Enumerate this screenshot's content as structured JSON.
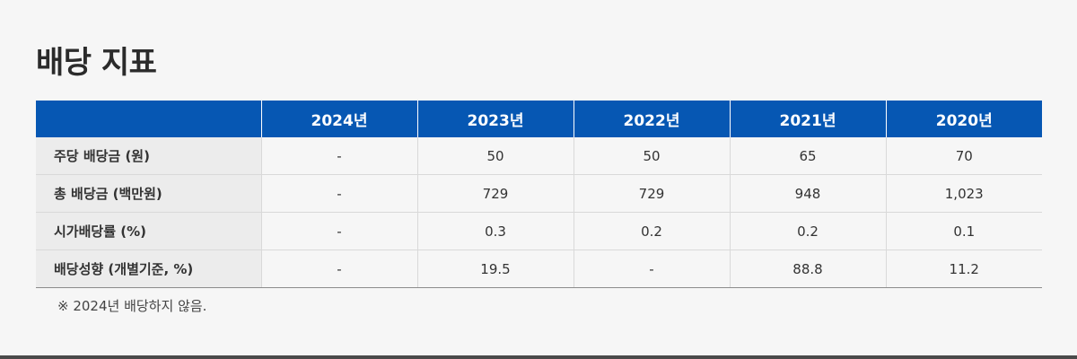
{
  "title": "배당 지표",
  "table": {
    "headers": [
      "",
      "2024년",
      "2023년",
      "2022년",
      "2021년",
      "2020년"
    ],
    "rows": [
      {
        "label": "주당 배당금 (원)",
        "values": [
          "-",
          "50",
          "50",
          "65",
          "70"
        ]
      },
      {
        "label": "총 배당금 (백만원)",
        "values": [
          "-",
          "729",
          "729",
          "948",
          "1,023"
        ]
      },
      {
        "label": "시가배당률 (%)",
        "values": [
          "-",
          "0.3",
          "0.2",
          "0.2",
          "0.1"
        ]
      },
      {
        "label": "배당성향 (개별기준, %)",
        "values": [
          "-",
          "19.5",
          "-",
          "88.8",
          "11.2"
        ]
      }
    ]
  },
  "footnote": "※ 2024년 배당하지 않음.",
  "colors": {
    "header_bg": "#0657b3",
    "label_bg": "#ececec",
    "page_bg": "#f6f6f6"
  }
}
